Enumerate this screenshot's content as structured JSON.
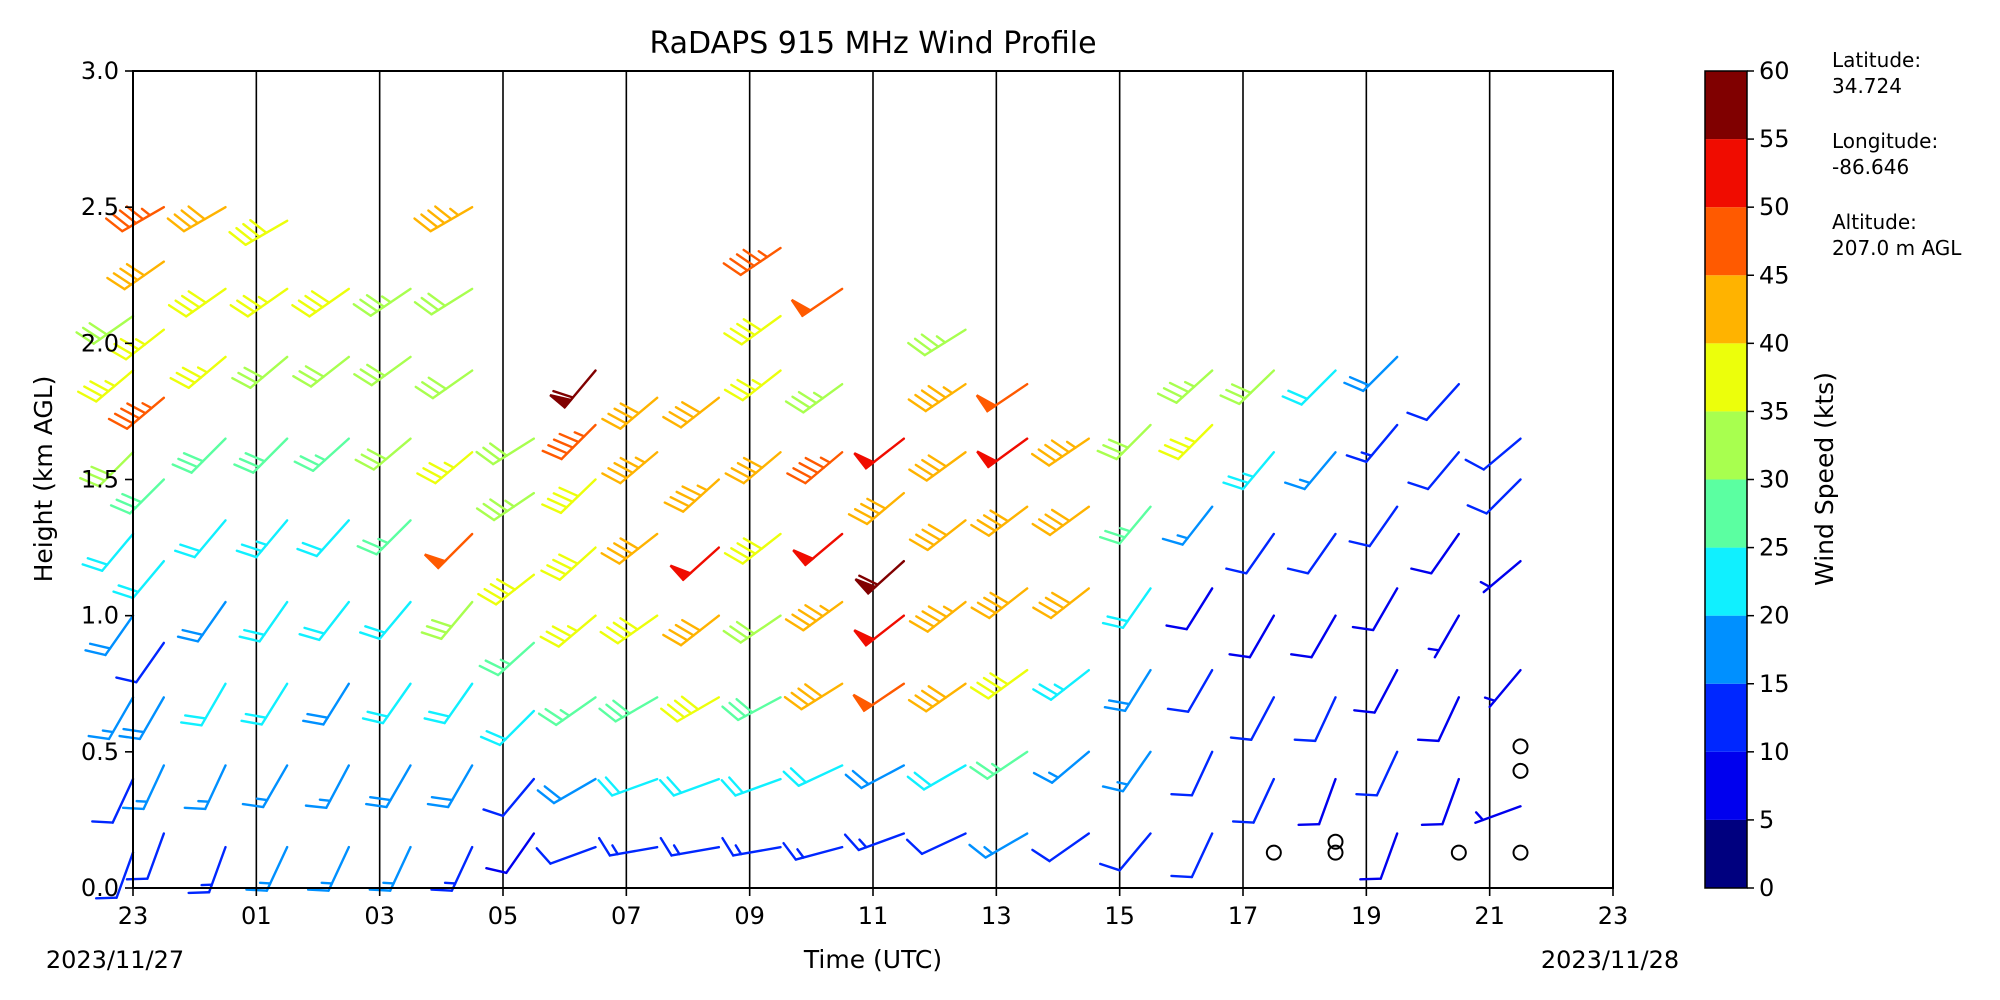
{
  "chart_data": {
    "type": "wind-barb-profile",
    "title": "RaDAPS 915 MHz Wind Profile",
    "xlabel": "Time (UTC)",
    "ylabel": "Height (km AGL)",
    "colorbar_label": "Wind Speed (kts)",
    "x_tick_labels": [
      "23",
      "01",
      "03",
      "05",
      "07",
      "09",
      "11",
      "13",
      "15",
      "17",
      "19",
      "21",
      "23"
    ],
    "x_range_hours": [
      0,
      24
    ],
    "start_date_label": "2023/11/27",
    "end_date_label": "2023/11/28",
    "y_ticks": [
      "0.0",
      "0.5",
      "1.0",
      "1.5",
      "2.0",
      "2.5",
      "3.0"
    ],
    "y_range_km": [
      0,
      3
    ],
    "hour_gridlines": true,
    "colorbar": {
      "bounds": [
        0,
        5,
        10,
        15,
        20,
        25,
        30,
        35,
        40,
        45,
        50,
        55,
        60
      ],
      "tick_labels": [
        "0",
        "5",
        "10",
        "15",
        "20",
        "25",
        "30",
        "35",
        "40",
        "45",
        "50",
        "55",
        "60"
      ],
      "colors": [
        "#00007f",
        "#0000ee",
        "#0027ff",
        "#0090ff",
        "#10f0ff",
        "#5bffa1",
        "#a8ff4f",
        "#ecff0b",
        "#ffb300",
        "#ff5a00",
        "#f00c00",
        "#800000"
      ]
    },
    "station": {
      "latitude_label": "Latitude:",
      "latitude": "34.724",
      "longitude_label": "Longitude:",
      "longitude": "-86.646",
      "altitude_label": "Altitude:",
      "altitude": "207.0 m AGL"
    },
    "profiles": [
      {
        "t": 0.0,
        "levels": [
          [
            0.13,
            10,
            200
          ],
          [
            0.4,
            12,
            205
          ],
          [
            0.7,
            15,
            210
          ],
          [
            1.0,
            18,
            215
          ],
          [
            1.3,
            22,
            220
          ],
          [
            1.6,
            30,
            225
          ],
          [
            1.9,
            35,
            230
          ],
          [
            2.1,
            32,
            235
          ]
        ]
      },
      {
        "t": 0.5,
        "levels": [
          [
            0.2,
            12,
            200
          ],
          [
            0.45,
            15,
            205
          ],
          [
            0.7,
            18,
            210
          ],
          [
            0.9,
            12,
            215
          ],
          [
            1.2,
            22,
            220
          ],
          [
            1.5,
            28,
            225
          ],
          [
            1.8,
            45,
            230
          ],
          [
            2.05,
            35,
            232
          ],
          [
            2.3,
            40,
            235
          ],
          [
            2.5,
            45,
            240
          ]
        ]
      },
      {
        "t": 1.5,
        "levels": [
          [
            0.15,
            14,
            200
          ],
          [
            0.45,
            17,
            205
          ],
          [
            0.75,
            20,
            210
          ],
          [
            1.05,
            18,
            215
          ],
          [
            1.35,
            22,
            220
          ],
          [
            1.65,
            28,
            225
          ],
          [
            1.95,
            35,
            230
          ],
          [
            2.2,
            38,
            235
          ],
          [
            2.5,
            42,
            240
          ]
        ]
      },
      {
        "t": 2.5,
        "levels": [
          [
            0.15,
            15,
            205
          ],
          [
            0.45,
            17,
            210
          ],
          [
            0.75,
            20,
            212
          ],
          [
            1.05,
            22,
            215
          ],
          [
            1.35,
            24,
            220
          ],
          [
            1.65,
            28,
            225
          ],
          [
            1.95,
            32,
            230
          ],
          [
            2.2,
            35,
            235
          ],
          [
            2.45,
            38,
            240
          ]
        ]
      },
      {
        "t": 3.5,
        "levels": [
          [
            0.15,
            15,
            205
          ],
          [
            0.45,
            17,
            208
          ],
          [
            0.75,
            18,
            212
          ],
          [
            1.05,
            20,
            218
          ],
          [
            1.35,
            22,
            222
          ],
          [
            1.65,
            26,
            228
          ],
          [
            1.95,
            30,
            232
          ],
          [
            2.2,
            38,
            235
          ]
        ]
      },
      {
        "t": 4.5,
        "levels": [
          [
            0.15,
            16,
            205
          ],
          [
            0.45,
            18,
            210
          ],
          [
            0.75,
            20,
            215
          ],
          [
            1.05,
            22,
            220
          ],
          [
            1.35,
            25,
            225
          ],
          [
            1.65,
            30,
            230
          ],
          [
            1.95,
            32,
            234
          ],
          [
            2.2,
            33,
            236
          ]
        ]
      },
      {
        "t": 5.5,
        "levels": [
          [
            0.15,
            14,
            205
          ],
          [
            0.45,
            18,
            210
          ],
          [
            0.75,
            22,
            215
          ],
          [
            1.05,
            30,
            220
          ],
          [
            1.3,
            48,
            225
          ],
          [
            1.6,
            35,
            230
          ],
          [
            1.9,
            32,
            235
          ],
          [
            2.2,
            32,
            238
          ],
          [
            2.5,
            44,
            240
          ]
        ]
      },
      {
        "t": 6.5,
        "levels": [
          [
            0.2,
            8,
            215
          ],
          [
            0.4,
            10,
            220
          ],
          [
            0.65,
            22,
            225
          ],
          [
            0.9,
            26,
            228
          ],
          [
            1.15,
            38,
            232
          ],
          [
            1.45,
            33,
            236
          ],
          [
            1.65,
            30,
            238
          ]
        ]
      },
      {
        "t": 7.5,
        "levels": [
          [
            0.15,
            12,
            250
          ],
          [
            0.4,
            18,
            240
          ],
          [
            0.7,
            25,
            235
          ],
          [
            1.0,
            35,
            230
          ],
          [
            1.25,
            38,
            228
          ],
          [
            1.5,
            38,
            226
          ],
          [
            1.7,
            45,
            225
          ],
          [
            1.9,
            58,
            220
          ]
        ]
      },
      {
        "t": 8.5,
        "levels": [
          [
            0.15,
            14,
            260
          ],
          [
            0.4,
            20,
            250
          ],
          [
            0.7,
            28,
            240
          ],
          [
            1.0,
            38,
            235
          ],
          [
            1.3,
            40,
            232
          ],
          [
            1.6,
            44,
            230
          ],
          [
            1.8,
            42,
            230
          ]
        ]
      },
      {
        "t": 9.5,
        "levels": [
          [
            0.15,
            14,
            260
          ],
          [
            0.4,
            22,
            250
          ],
          [
            0.7,
            38,
            240
          ],
          [
            1.0,
            40,
            232
          ],
          [
            1.25,
            50,
            228
          ],
          [
            1.5,
            44,
            228
          ],
          [
            1.8,
            42,
            232
          ]
        ]
      },
      {
        "t": 10.5,
        "levels": [
          [
            0.15,
            14,
            260
          ],
          [
            0.4,
            20,
            250
          ],
          [
            0.7,
            28,
            242
          ],
          [
            1.0,
            32,
            236
          ],
          [
            1.3,
            38,
            232
          ],
          [
            1.6,
            40,
            230
          ],
          [
            1.9,
            36,
            232
          ],
          [
            2.1,
            38,
            234
          ],
          [
            2.35,
            46,
            236
          ]
        ]
      },
      {
        "t": 11.5,
        "levels": [
          [
            0.15,
            14,
            255
          ],
          [
            0.45,
            22,
            245
          ],
          [
            0.75,
            40,
            238
          ],
          [
            1.05,
            44,
            234
          ],
          [
            1.3,
            52,
            230
          ],
          [
            1.6,
            46,
            230
          ],
          [
            1.85,
            33,
            234
          ],
          [
            2.2,
            48,
            236
          ]
        ]
      },
      {
        "t": 12.5,
        "levels": [
          [
            0.2,
            14,
            250
          ],
          [
            0.45,
            18,
            242
          ],
          [
            0.75,
            48,
            236
          ],
          [
            1.0,
            50,
            232
          ],
          [
            1.2,
            58,
            228
          ],
          [
            1.45,
            42,
            230
          ],
          [
            1.65,
            52,
            232
          ]
        ]
      },
      {
        "t": 13.5,
        "levels": [
          [
            0.2,
            12,
            245
          ],
          [
            0.45,
            22,
            240
          ],
          [
            0.75,
            40,
            235
          ],
          [
            1.05,
            44,
            232
          ],
          [
            1.35,
            40,
            232
          ],
          [
            1.6,
            42,
            234
          ],
          [
            1.85,
            44,
            236
          ],
          [
            2.05,
            34,
            238
          ]
        ]
      },
      {
        "t": 14.5,
        "levels": [
          [
            0.2,
            16,
            240
          ],
          [
            0.5,
            26,
            236
          ],
          [
            0.8,
            38,
            234
          ],
          [
            1.1,
            40,
            232
          ],
          [
            1.4,
            40,
            233
          ],
          [
            1.65,
            52,
            234
          ],
          [
            1.85,
            48,
            236
          ]
        ]
      },
      {
        "t": 15.5,
        "levels": [
          [
            0.2,
            12,
            235
          ],
          [
            0.5,
            16,
            230
          ],
          [
            0.8,
            24,
            232
          ],
          [
            1.1,
            40,
            232
          ],
          [
            1.4,
            42,
            234
          ],
          [
            1.65,
            44,
            236
          ]
        ]
      },
      {
        "t": 16.5,
        "levels": [
          [
            0.2,
            12,
            220
          ],
          [
            0.5,
            15,
            215
          ],
          [
            0.8,
            18,
            212
          ],
          [
            1.1,
            22,
            215
          ],
          [
            1.4,
            26,
            220
          ],
          [
            1.7,
            30,
            225
          ]
        ]
      },
      {
        "t": 17.5,
        "levels": [
          [
            0.2,
            10,
            205
          ],
          [
            0.5,
            12,
            205
          ],
          [
            0.8,
            10,
            210
          ],
          [
            1.1,
            8,
            212
          ],
          [
            1.4,
            15,
            218
          ],
          [
            1.7,
            35,
            225
          ],
          [
            1.9,
            33,
            228
          ]
        ]
      },
      {
        "t": 18.5,
        "levels": [
          [
            0.13,
            0,
            0
          ],
          [
            0.4,
            10,
            205
          ],
          [
            0.7,
            10,
            208
          ],
          [
            1.0,
            9,
            210
          ],
          [
            1.3,
            12,
            215
          ],
          [
            1.6,
            24,
            220
          ],
          [
            1.9,
            32,
            226
          ]
        ]
      },
      {
        "t": 19.5,
        "levels": [
          [
            0.13,
            0,
            0
          ],
          [
            0.17,
            0,
            0
          ],
          [
            0.4,
            8,
            200
          ],
          [
            0.7,
            10,
            205
          ],
          [
            1.0,
            8,
            210
          ],
          [
            1.3,
            10,
            215
          ],
          [
            1.6,
            15,
            220
          ],
          [
            1.9,
            20,
            225
          ]
        ]
      },
      {
        "t": 20.5,
        "levels": [
          [
            0.2,
            8,
            200
          ],
          [
            0.5,
            10,
            205
          ],
          [
            0.8,
            9,
            208
          ],
          [
            1.1,
            8,
            210
          ],
          [
            1.4,
            10,
            215
          ],
          [
            1.7,
            14,
            220
          ],
          [
            1.95,
            18,
            225
          ]
        ]
      },
      {
        "t": 21.5,
        "levels": [
          [
            0.13,
            0,
            0
          ],
          [
            0.4,
            8,
            200
          ],
          [
            0.7,
            9,
            205
          ],
          [
            1.0,
            7,
            210
          ],
          [
            1.3,
            9,
            215
          ],
          [
            1.6,
            12,
            220
          ],
          [
            1.85,
            10,
            222
          ]
        ]
      },
      {
        "t": 22.5,
        "levels": [
          [
            0.13,
            0,
            0
          ],
          [
            0.43,
            0,
            0
          ],
          [
            0.52,
            0,
            0
          ],
          [
            0.3,
            6,
            250
          ],
          [
            0.8,
            7,
            220
          ],
          [
            1.2,
            6,
            230
          ],
          [
            1.5,
            10,
            225
          ],
          [
            1.65,
            12,
            230
          ]
        ]
      }
    ]
  }
}
